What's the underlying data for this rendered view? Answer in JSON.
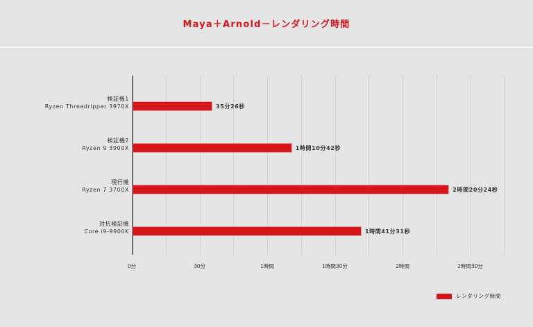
{
  "title": "Maya＋Arnold－レンダリング時間",
  "chart_data": {
    "type": "bar",
    "orientation": "horizontal",
    "title": "Maya＋Arnold－レンダリング時間",
    "xlabel": "",
    "ylabel": "",
    "units": "minutes",
    "xlim": [
      0,
      165
    ],
    "x_ticks": [
      {
        "value": 0,
        "label": "0分"
      },
      {
        "value": 30,
        "label": "30分"
      },
      {
        "value": 60,
        "label": "1時間"
      },
      {
        "value": 90,
        "label": "1時間30分"
      },
      {
        "value": 120,
        "label": "2時間"
      },
      {
        "value": 150,
        "label": "2時間30分"
      }
    ],
    "grid": true,
    "grid_interval": 15,
    "categories": [
      {
        "line1": "検証機1",
        "line2": "Ryzen Threadripper 3970X"
      },
      {
        "line1": "検証機2",
        "line2": "Ryzen 9 3900X"
      },
      {
        "line1": "現行機",
        "line2": "Ryzen 7 3700X"
      },
      {
        "line1": "対抗検証機",
        "line2": "Core i9-9900K"
      }
    ],
    "series": [
      {
        "name": "レンダリング時間",
        "color": "#d7161b",
        "values": [
          35.43,
          70.7,
          140.4,
          101.52
        ],
        "value_labels": [
          "35分26秒",
          "1時間10分42秒",
          "2時間20分24秒",
          "1時間41分31秒"
        ]
      }
    ],
    "legend_position": "bottom-right"
  },
  "legend": {
    "label": "レンダリング時間"
  }
}
